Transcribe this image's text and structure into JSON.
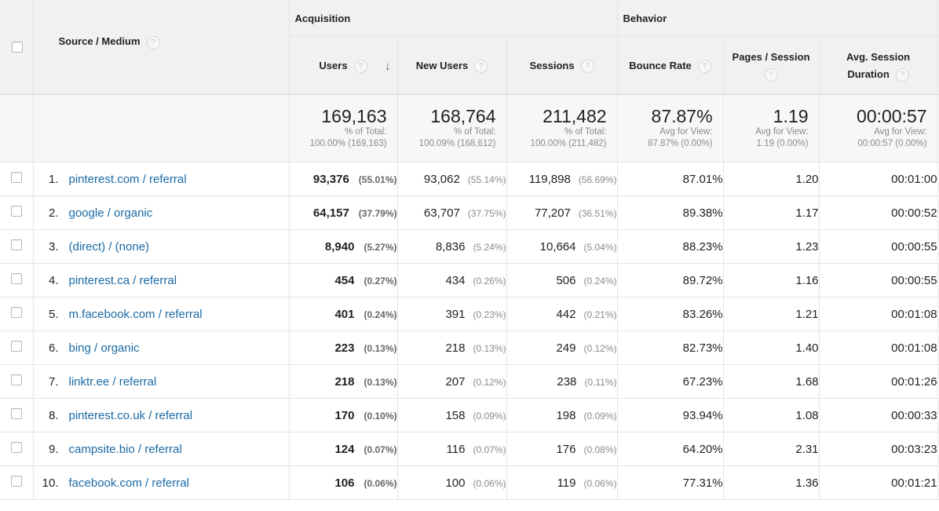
{
  "header": {
    "source_medium": "Source / Medium",
    "groups": {
      "acquisition": "Acquisition",
      "behavior": "Behavior"
    },
    "columns": {
      "users": "Users",
      "new_users": "New Users",
      "sessions": "Sessions",
      "bounce_rate": "Bounce Rate",
      "pages_session_l1": "Pages / Session",
      "avg_duration_l1": "Avg. Session",
      "avg_duration_l2": "Duration"
    },
    "help": "?",
    "sort_arrow": "↓"
  },
  "totals": {
    "users": {
      "value": "169,163",
      "l1": "% of Total:",
      "l2": "100.00% (169,163)"
    },
    "new_users": {
      "value": "168,764",
      "l1": "% of Total:",
      "l2": "100.09% (168,612)"
    },
    "sessions": {
      "value": "211,482",
      "l1": "% of Total:",
      "l2": "100.00% (211,482)"
    },
    "bounce_rate": {
      "value": "87.87%",
      "l1": "Avg for View:",
      "l2": "87.87% (0.00%)"
    },
    "pages_session": {
      "value": "1.19",
      "l1": "Avg for View:",
      "l2": "1.19 (0.00%)"
    },
    "avg_duration": {
      "value": "00:00:57",
      "l1": "Avg for View:",
      "l2": "00:00:57 (0.00%)"
    }
  },
  "rows": [
    {
      "rank": "1.",
      "source": "pinterest.com / referral",
      "users": "93,376",
      "users_pct": "(55.01%)",
      "new_users": "93,062",
      "new_users_pct": "(55.14%)",
      "sessions": "119,898",
      "sessions_pct": "(56.69%)",
      "bounce_rate": "87.01%",
      "pages_session": "1.20",
      "avg_duration": "00:01:00"
    },
    {
      "rank": "2.",
      "source": "google / organic",
      "users": "64,157",
      "users_pct": "(37.79%)",
      "new_users": "63,707",
      "new_users_pct": "(37.75%)",
      "sessions": "77,207",
      "sessions_pct": "(36.51%)",
      "bounce_rate": "89.38%",
      "pages_session": "1.17",
      "avg_duration": "00:00:52"
    },
    {
      "rank": "3.",
      "source": "(direct) / (none)",
      "users": "8,940",
      "users_pct": "(5.27%)",
      "new_users": "8,836",
      "new_users_pct": "(5.24%)",
      "sessions": "10,664",
      "sessions_pct": "(5.04%)",
      "bounce_rate": "88.23%",
      "pages_session": "1.23",
      "avg_duration": "00:00:55"
    },
    {
      "rank": "4.",
      "source": "pinterest.ca / referral",
      "users": "454",
      "users_pct": "(0.27%)",
      "new_users": "434",
      "new_users_pct": "(0.26%)",
      "sessions": "506",
      "sessions_pct": "(0.24%)",
      "bounce_rate": "89.72%",
      "pages_session": "1.16",
      "avg_duration": "00:00:55"
    },
    {
      "rank": "5.",
      "source": "m.facebook.com / referral",
      "users": "401",
      "users_pct": "(0.24%)",
      "new_users": "391",
      "new_users_pct": "(0.23%)",
      "sessions": "442",
      "sessions_pct": "(0.21%)",
      "bounce_rate": "83.26%",
      "pages_session": "1.21",
      "avg_duration": "00:01:08"
    },
    {
      "rank": "6.",
      "source": "bing / organic",
      "users": "223",
      "users_pct": "(0.13%)",
      "new_users": "218",
      "new_users_pct": "(0.13%)",
      "sessions": "249",
      "sessions_pct": "(0.12%)",
      "bounce_rate": "82.73%",
      "pages_session": "1.40",
      "avg_duration": "00:01:08"
    },
    {
      "rank": "7.",
      "source": "linktr.ee / referral",
      "users": "218",
      "users_pct": "(0.13%)",
      "new_users": "207",
      "new_users_pct": "(0.12%)",
      "sessions": "238",
      "sessions_pct": "(0.11%)",
      "bounce_rate": "67.23%",
      "pages_session": "1.68",
      "avg_duration": "00:01:26"
    },
    {
      "rank": "8.",
      "source": "pinterest.co.uk / referral",
      "users": "170",
      "users_pct": "(0.10%)",
      "new_users": "158",
      "new_users_pct": "(0.09%)",
      "sessions": "198",
      "sessions_pct": "(0.09%)",
      "bounce_rate": "93.94%",
      "pages_session": "1.08",
      "avg_duration": "00:00:33"
    },
    {
      "rank": "9.",
      "source": "campsite.bio / referral",
      "users": "124",
      "users_pct": "(0.07%)",
      "new_users": "116",
      "new_users_pct": "(0.07%)",
      "sessions": "176",
      "sessions_pct": "(0.08%)",
      "bounce_rate": "64.20%",
      "pages_session": "2.31",
      "avg_duration": "00:03:23"
    },
    {
      "rank": "10.",
      "source": "facebook.com / referral",
      "users": "106",
      "users_pct": "(0.06%)",
      "new_users": "100",
      "new_users_pct": "(0.06%)",
      "sessions": "119",
      "sessions_pct": "(0.06%)",
      "bounce_rate": "77.31%",
      "pages_session": "1.36",
      "avg_duration": "00:01:21"
    }
  ],
  "colors": {
    "link": "#1b6aa5",
    "header_bg": "#f1f1f1",
    "totals_bg": "#f7f7f7",
    "border": "#e4e4e4"
  }
}
